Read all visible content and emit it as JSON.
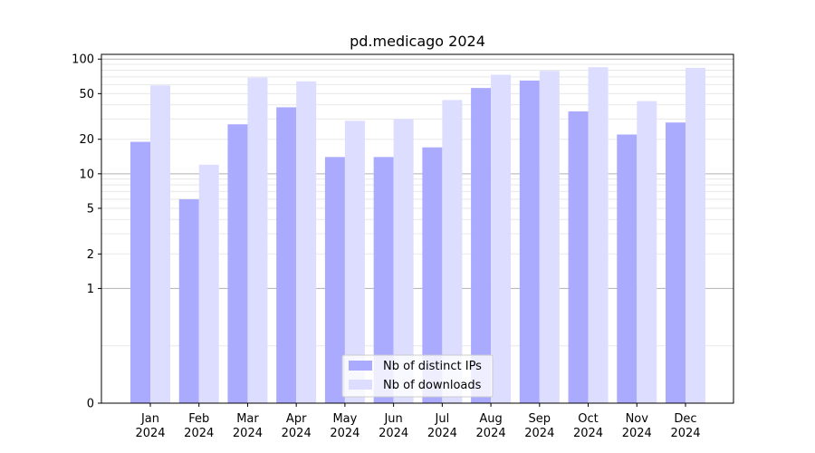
{
  "chart_data": {
    "type": "bar",
    "title": "pd.medicago 2024",
    "xlabel": "",
    "ylabel": "",
    "y_scale": "symlog",
    "ylim": [
      0,
      110
    ],
    "yticks": [
      0,
      1,
      2,
      5,
      10,
      20,
      50,
      100
    ],
    "grid": "y",
    "legend_position": "bottom-center",
    "categories": [
      {
        "month": "Jan",
        "year": "2024"
      },
      {
        "month": "Feb",
        "year": "2024"
      },
      {
        "month": "Mar",
        "year": "2024"
      },
      {
        "month": "Apr",
        "year": "2024"
      },
      {
        "month": "May",
        "year": "2024"
      },
      {
        "month": "Jun",
        "year": "2024"
      },
      {
        "month": "Jul",
        "year": "2024"
      },
      {
        "month": "Aug",
        "year": "2024"
      },
      {
        "month": "Sep",
        "year": "2024"
      },
      {
        "month": "Oct",
        "year": "2024"
      },
      {
        "month": "Nov",
        "year": "2024"
      },
      {
        "month": "Dec",
        "year": "2024"
      }
    ],
    "series": [
      {
        "name": "Nb of distinct IPs",
        "color": "#aaaaff",
        "values": [
          19,
          6,
          27,
          38,
          14,
          14,
          17,
          56,
          65,
          35,
          22,
          28
        ]
      },
      {
        "name": "Nb of downloads",
        "color": "#ddddff",
        "values": [
          59,
          12,
          69,
          64,
          29,
          30,
          44,
          73,
          79,
          85,
          43,
          84
        ]
      }
    ]
  }
}
